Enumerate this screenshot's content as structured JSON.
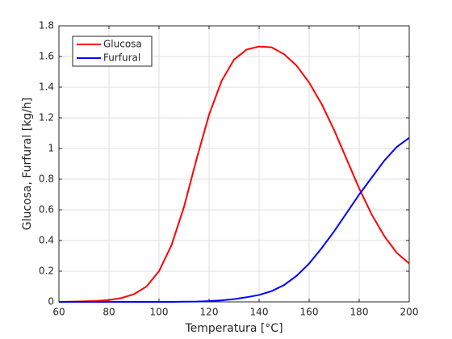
{
  "chart_data": {
    "type": "line",
    "xlabel": "Temperatura [°C]",
    "ylabel": "Glucosa, Furfural [kg/h]",
    "x": [
      60,
      65,
      70,
      75,
      80,
      85,
      90,
      95,
      100,
      105,
      110,
      115,
      120,
      125,
      130,
      135,
      140,
      145,
      150,
      155,
      160,
      165,
      170,
      175,
      180,
      185,
      190,
      195,
      200
    ],
    "series": [
      {
        "name": "Glucosa",
        "color": "#ff0000",
        "values": [
          0,
          0.001,
          0.003,
          0.006,
          0.012,
          0.025,
          0.05,
          0.1,
          0.2,
          0.37,
          0.62,
          0.93,
          1.22,
          1.44,
          1.58,
          1.645,
          1.665,
          1.66,
          1.615,
          1.54,
          1.43,
          1.29,
          1.12,
          0.93,
          0.74,
          0.57,
          0.43,
          0.32,
          0.25
        ]
      },
      {
        "name": "Furfural",
        "color": "#0000ff",
        "values": [
          0,
          0,
          0,
          0,
          0,
          0,
          0,
          0,
          0,
          0,
          0.001,
          0.002,
          0.005,
          0.01,
          0.018,
          0.03,
          0.045,
          0.07,
          0.11,
          0.17,
          0.25,
          0.35,
          0.46,
          0.58,
          0.7,
          0.81,
          0.92,
          1.01,
          1.07
        ]
      }
    ],
    "xlim": [
      60,
      200
    ],
    "xticks": [
      60,
      80,
      100,
      120,
      140,
      160,
      180,
      200
    ],
    "ylim": [
      0,
      1.8
    ],
    "yticks": [
      0,
      0.2,
      0.4,
      0.6,
      0.8,
      1,
      1.2,
      1.4,
      1.6,
      1.8
    ],
    "grid": true,
    "legend": "northwest"
  }
}
